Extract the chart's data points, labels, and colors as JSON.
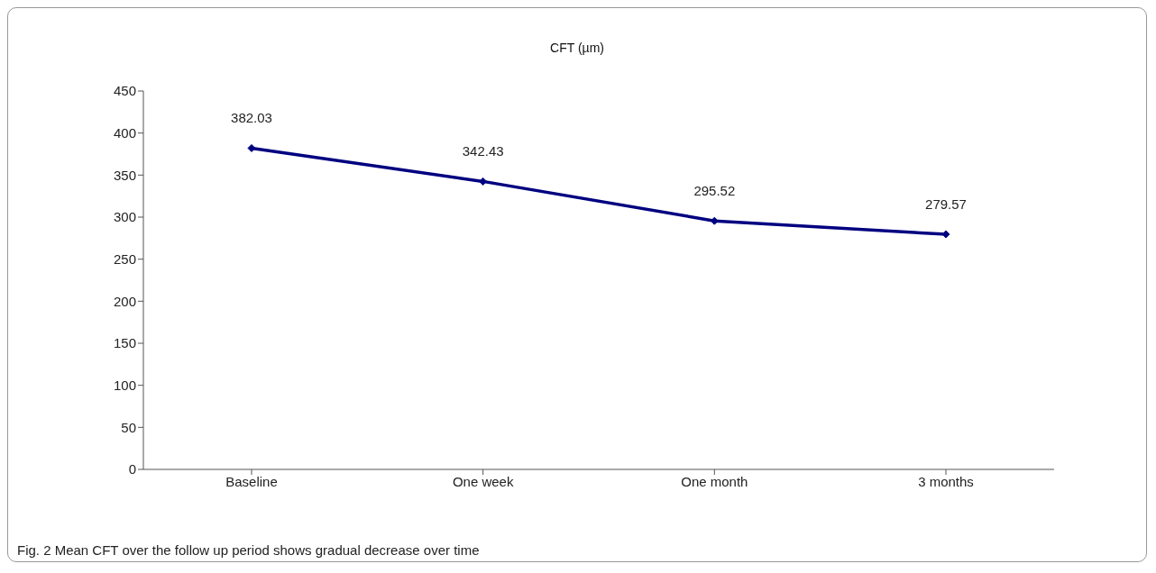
{
  "chart_data": {
    "type": "line",
    "title": "CFT (µm)",
    "categories": [
      "Baseline",
      "One week",
      "One month",
      "3 months"
    ],
    "series": [
      {
        "color": "#000080",
        "values": [
          382.03,
          342.43,
          295.52,
          279.57
        ]
      }
    ],
    "ylim": [
      0,
      450
    ],
    "yticks": [
      0,
      50,
      100,
      150,
      200,
      250,
      300,
      350,
      400,
      450
    ],
    "grid": false,
    "legend": false,
    "marker": "diamond",
    "line_style": "solid",
    "data_labels": true,
    "annotations": [
      "Fig. 2  Mean CFT over the follow up period  shows gradual decrease over time"
    ]
  }
}
